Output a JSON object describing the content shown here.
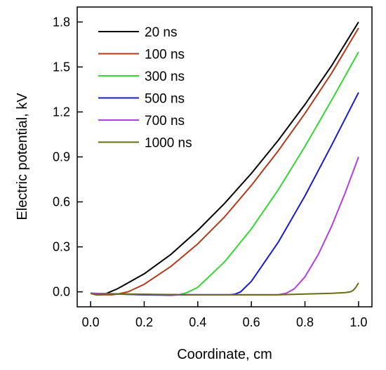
{
  "chart_data": {
    "type": "line",
    "title": "",
    "xlabel": "Coordinate, cm",
    "ylabel": "Electric potential, kV",
    "xlim": [
      -0.05,
      1.05
    ],
    "ylim": [
      -0.1,
      1.9
    ],
    "grid": false,
    "legend_position": "top-left",
    "x_ticks": [
      "0.0",
      "0.2",
      "0.4",
      "0.6",
      "0.8",
      "1.0"
    ],
    "y_ticks": [
      "0.0",
      "0.3",
      "0.6",
      "0.9",
      "1.2",
      "1.5",
      "1.8"
    ],
    "series": [
      {
        "name": "20 ns",
        "color": "#000000",
        "points": [
          [
            0.0,
            -0.01
          ],
          [
            0.02,
            -0.02
          ],
          [
            0.04,
            -0.02
          ],
          [
            0.06,
            -0.01
          ],
          [
            0.1,
            0.02
          ],
          [
            0.2,
            0.12
          ],
          [
            0.3,
            0.25
          ],
          [
            0.4,
            0.41
          ],
          [
            0.5,
            0.59
          ],
          [
            0.6,
            0.79
          ],
          [
            0.7,
            1.01
          ],
          [
            0.8,
            1.25
          ],
          [
            0.9,
            1.51
          ],
          [
            1.0,
            1.8
          ]
        ]
      },
      {
        "name": "100 ns",
        "color": "#b03a1a",
        "points": [
          [
            0.0,
            -0.01
          ],
          [
            0.04,
            -0.02
          ],
          [
            0.08,
            -0.02
          ],
          [
            0.1,
            -0.015
          ],
          [
            0.14,
            0.0
          ],
          [
            0.2,
            0.05
          ],
          [
            0.3,
            0.17
          ],
          [
            0.4,
            0.32
          ],
          [
            0.5,
            0.5
          ],
          [
            0.6,
            0.71
          ],
          [
            0.7,
            0.94
          ],
          [
            0.8,
            1.19
          ],
          [
            0.9,
            1.46
          ],
          [
            1.0,
            1.76
          ]
        ]
      },
      {
        "name": "300 ns",
        "color": "#33d633",
        "points": [
          [
            0.0,
            -0.01
          ],
          [
            0.1,
            -0.015
          ],
          [
            0.2,
            -0.02
          ],
          [
            0.3,
            -0.025
          ],
          [
            0.33,
            -0.02
          ],
          [
            0.36,
            -0.005
          ],
          [
            0.4,
            0.03
          ],
          [
            0.5,
            0.2
          ],
          [
            0.6,
            0.42
          ],
          [
            0.7,
            0.68
          ],
          [
            0.8,
            0.97
          ],
          [
            0.9,
            1.28
          ],
          [
            1.0,
            1.6
          ]
        ]
      },
      {
        "name": "500 ns",
        "color": "#1a1acc",
        "points": [
          [
            0.0,
            -0.01
          ],
          [
            0.2,
            -0.02
          ],
          [
            0.4,
            -0.02
          ],
          [
            0.52,
            -0.02
          ],
          [
            0.54,
            -0.015
          ],
          [
            0.56,
            0.0
          ],
          [
            0.6,
            0.07
          ],
          [
            0.7,
            0.33
          ],
          [
            0.8,
            0.64
          ],
          [
            0.9,
            0.98
          ],
          [
            1.0,
            1.33
          ]
        ]
      },
      {
        "name": "700 ns",
        "color": "#b040e0",
        "points": [
          [
            0.0,
            -0.01
          ],
          [
            0.3,
            -0.02
          ],
          [
            0.6,
            -0.02
          ],
          [
            0.7,
            -0.02
          ],
          [
            0.73,
            -0.01
          ],
          [
            0.76,
            0.02
          ],
          [
            0.8,
            0.1
          ],
          [
            0.85,
            0.25
          ],
          [
            0.9,
            0.44
          ],
          [
            0.95,
            0.66
          ],
          [
            1.0,
            0.9
          ]
        ]
      },
      {
        "name": "1000 ns",
        "color": "#6b6b10",
        "points": [
          [
            0.0,
            -0.01
          ],
          [
            0.02,
            -0.02
          ],
          [
            0.1,
            -0.015
          ],
          [
            0.4,
            -0.02
          ],
          [
            0.7,
            -0.02
          ],
          [
            0.9,
            -0.01
          ],
          [
            0.95,
            -0.005
          ],
          [
            0.97,
            0.0
          ],
          [
            0.98,
            0.01
          ],
          [
            0.99,
            0.03
          ],
          [
            1.0,
            0.06
          ]
        ]
      }
    ]
  }
}
